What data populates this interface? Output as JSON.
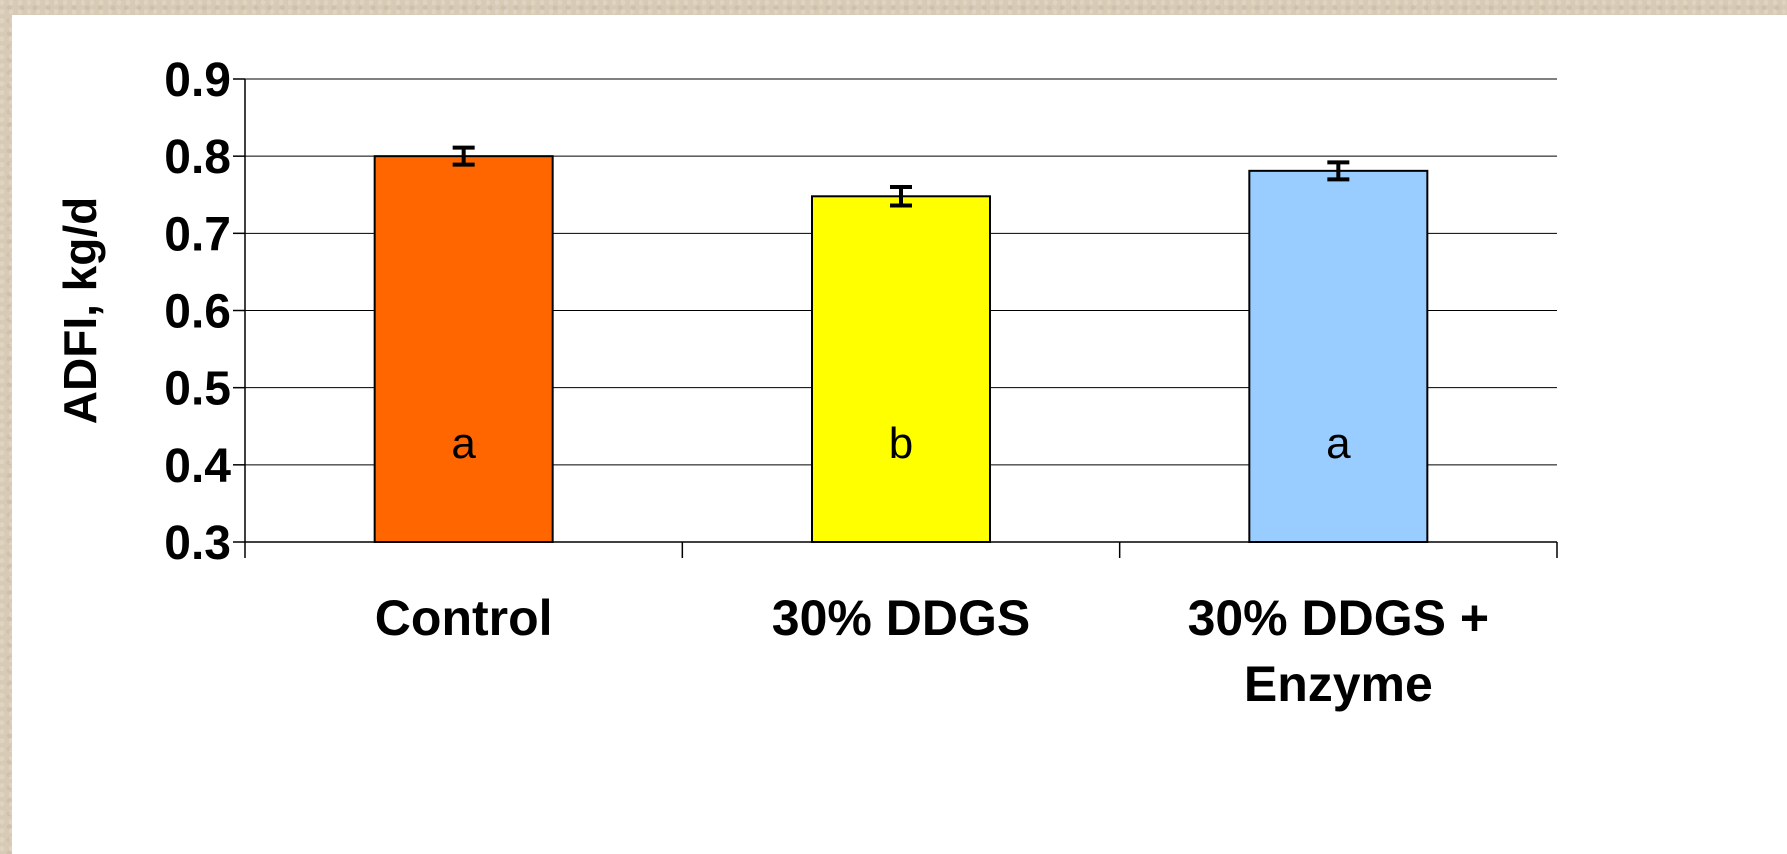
{
  "chart_data": {
    "type": "bar",
    "title": "",
    "xlabel": "",
    "ylabel": "ADFI, kg/d",
    "ylim": [
      0.3,
      0.9
    ],
    "yticks": [
      0.3,
      0.4,
      0.5,
      0.6,
      0.7,
      0.8,
      0.9
    ],
    "ytick_labels": [
      "0.3",
      "0.4",
      "0.5",
      "0.6",
      "0.7",
      "0.8",
      "0.9"
    ],
    "grid": true,
    "categories": [
      {
        "lines": [
          "Control"
        ]
      },
      {
        "lines": [
          "30% DDGS"
        ]
      },
      {
        "lines": [
          "30% DDGS +",
          "Enzyme"
        ]
      }
    ],
    "values": [
      0.8,
      0.748,
      0.781
    ],
    "errors": [
      0.011,
      0.012,
      0.011
    ],
    "bar_letters": [
      "a",
      "b",
      "a"
    ],
    "colors": [
      "#ff6600",
      "#ffff00",
      "#99ccff"
    ]
  }
}
